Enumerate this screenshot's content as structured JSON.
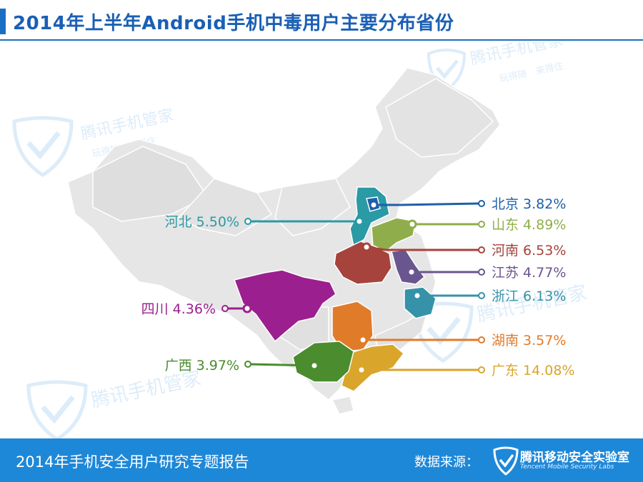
{
  "title": "2014年上半年Android手机中毒用户主要分布省份",
  "footer": {
    "report": "2014年手机安全用户研究专题报告",
    "source_label": "数据来源：",
    "lab_name": "腾讯移动安全实验室",
    "lab_sub": "Tencent Mobile Security Labs"
  },
  "watermark": {
    "brand": "腾讯手机管家",
    "slogan": "玩得随　来得住"
  },
  "colors": {
    "beijing": "#1f5fa8",
    "shandong": "#8fae4b",
    "henan": "#a5433c",
    "jiangsu": "#6a568f",
    "zhejiang": "#3592a8",
    "hunan": "#e07b2a",
    "guangdong": "#d9a52b",
    "hebei": "#2a9aa5",
    "sichuan": "#9c1f8f",
    "guangxi": "#4a8c2e",
    "base": "#e6e6e6"
  },
  "chart_data": {
    "type": "table",
    "unit": "%",
    "rows": [
      {
        "province": "北京",
        "value": 3.82,
        "label": "北京 3.82%"
      },
      {
        "province": "山东",
        "value": 4.89,
        "label": "山东 4.89%"
      },
      {
        "province": "河南",
        "value": 6.53,
        "label": "河南 6.53%"
      },
      {
        "province": "江苏",
        "value": 4.77,
        "label": "江苏 4.77%"
      },
      {
        "province": "浙江",
        "value": 6.13,
        "label": "浙江 6.13%"
      },
      {
        "province": "湖南",
        "value": 3.57,
        "label": "湖南 3.57%"
      },
      {
        "province": "广东",
        "value": 14.08,
        "label": "广东 14.08%"
      },
      {
        "province": "河北",
        "value": 5.5,
        "label": "河北 5.50%"
      },
      {
        "province": "四川",
        "value": 4.36,
        "label": "四川 4.36%"
      },
      {
        "province": "广西",
        "value": 3.97,
        "label": "广西 3.97%"
      }
    ]
  }
}
